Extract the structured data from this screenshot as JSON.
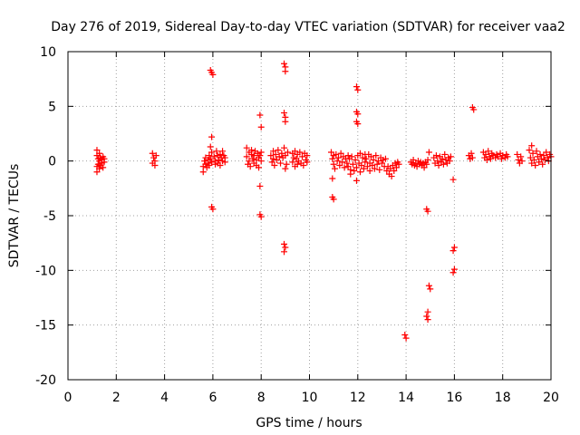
{
  "chart_data": {
    "type": "scatter",
    "title": "Day 276 of 2019, Sidereal Day-to-day VTEC variation (SDTVAR) for receiver vaa2",
    "xlabel": "GPS time / hours",
    "ylabel": "SDTVAR / TECUs",
    "xlim": [
      0,
      20
    ],
    "ylim": [
      -20,
      10
    ],
    "x_ticks": [
      0,
      2,
      4,
      6,
      8,
      10,
      12,
      14,
      16,
      18,
      20
    ],
    "y_ticks": [
      -20,
      -15,
      -10,
      -5,
      0,
      5,
      10
    ],
    "x_tick_labels": [
      "0",
      "2",
      "4",
      "6",
      "8",
      "10",
      "12",
      "14",
      "16",
      "18",
      "20"
    ],
    "y_tick_labels": [
      "-20",
      "-15",
      "-10",
      "-5",
      "0",
      "5",
      "10"
    ],
    "grid": true,
    "marker": "plus",
    "color": "#ff0000",
    "series": [
      {
        "name": "vaa2",
        "points": [
          [
            1.2,
            1.0
          ],
          [
            1.2,
            0.5
          ],
          [
            1.2,
            -0.5
          ],
          [
            1.2,
            -1.0
          ],
          [
            1.25,
            0.2
          ],
          [
            1.25,
            -0.3
          ],
          [
            1.3,
            0.0
          ],
          [
            1.3,
            0.7
          ],
          [
            1.3,
            -0.7
          ],
          [
            1.35,
            0.3
          ],
          [
            1.35,
            -0.4
          ],
          [
            1.4,
            0.1
          ],
          [
            1.4,
            -0.2
          ],
          [
            1.45,
            0.4
          ],
          [
            1.45,
            -0.6
          ],
          [
            1.5,
            0.2
          ],
          [
            1.5,
            -0.1
          ],
          [
            3.5,
            0.7
          ],
          [
            3.5,
            -0.2
          ],
          [
            3.55,
            0.3
          ],
          [
            3.6,
            0.0
          ],
          [
            3.6,
            -0.4
          ],
          [
            3.65,
            0.5
          ],
          [
            5.6,
            -0.5
          ],
          [
            5.6,
            -1.0
          ],
          [
            5.65,
            0.0
          ],
          [
            5.7,
            -0.3
          ],
          [
            5.7,
            0.3
          ],
          [
            5.75,
            -0.6
          ],
          [
            5.8,
            0.1
          ],
          [
            5.8,
            -0.2
          ],
          [
            5.85,
            0.5
          ],
          [
            5.85,
            -0.4
          ],
          [
            5.9,
            0.2
          ],
          [
            5.9,
            1.3
          ],
          [
            5.95,
            0.8
          ],
          [
            5.95,
            -0.1
          ],
          [
            5.9,
            8.3
          ],
          [
            5.95,
            8.1
          ],
          [
            6.0,
            7.9
          ],
          [
            5.95,
            2.2
          ],
          [
            5.95,
            -4.2
          ],
          [
            6.0,
            -4.4
          ],
          [
            6.05,
            0.4
          ],
          [
            6.1,
            0.0
          ],
          [
            6.1,
            -0.3
          ],
          [
            6.15,
            0.9
          ],
          [
            6.2,
            0.5
          ],
          [
            6.2,
            -0.2
          ],
          [
            6.25,
            0.1
          ],
          [
            6.3,
            0.6
          ],
          [
            6.3,
            -0.4
          ],
          [
            6.35,
            0.3
          ],
          [
            6.4,
            0.0
          ],
          [
            6.4,
            0.9
          ],
          [
            6.45,
            0.5
          ],
          [
            6.5,
            -0.1
          ],
          [
            6.5,
            0.3
          ],
          [
            7.4,
            1.2
          ],
          [
            7.4,
            0.4
          ],
          [
            7.45,
            -0.3
          ],
          [
            7.5,
            0.8
          ],
          [
            7.5,
            0.0
          ],
          [
            7.55,
            -0.5
          ],
          [
            7.6,
            0.6
          ],
          [
            7.6,
            1.0
          ],
          [
            7.65,
            0.2
          ],
          [
            7.7,
            -0.2
          ],
          [
            7.7,
            0.5
          ],
          [
            7.75,
            0.9
          ],
          [
            7.8,
            0.1
          ],
          [
            7.8,
            -0.4
          ],
          [
            7.85,
            0.7
          ],
          [
            7.9,
            0.3
          ],
          [
            7.9,
            -0.6
          ],
          [
            7.95,
            0.5
          ],
          [
            8.0,
            0.0
          ],
          [
            8.0,
            0.8
          ],
          [
            7.95,
            4.2
          ],
          [
            8.0,
            3.1
          ],
          [
            7.95,
            -2.3
          ],
          [
            7.95,
            -4.9
          ],
          [
            8.0,
            -5.1
          ],
          [
            8.4,
            0.5
          ],
          [
            8.45,
            -0.1
          ],
          [
            8.5,
            0.9
          ],
          [
            8.5,
            0.2
          ],
          [
            8.55,
            -0.4
          ],
          [
            8.6,
            0.6
          ],
          [
            8.65,
            0.1
          ],
          [
            8.7,
            1.0
          ],
          [
            8.75,
            0.4
          ],
          [
            8.8,
            -0.2
          ],
          [
            8.85,
            0.7
          ],
          [
            8.9,
            0.3
          ],
          [
            8.95,
            1.2
          ],
          [
            9.0,
            0.5
          ],
          [
            9.05,
            -0.3
          ],
          [
            9.1,
            0.8
          ],
          [
            8.95,
            8.9
          ],
          [
            9.0,
            8.6
          ],
          [
            9.0,
            8.2
          ],
          [
            8.95,
            4.4
          ],
          [
            9.0,
            4.0
          ],
          [
            9.0,
            3.6
          ],
          [
            9.0,
            -0.7
          ],
          [
            8.95,
            -7.6
          ],
          [
            9.0,
            -7.9
          ],
          [
            8.95,
            -8.3
          ],
          [
            9.3,
            0.7
          ],
          [
            9.3,
            -0.1
          ],
          [
            9.35,
            0.3
          ],
          [
            9.4,
            -0.5
          ],
          [
            9.4,
            0.9
          ],
          [
            9.45,
            0.2
          ],
          [
            9.5,
            -0.3
          ],
          [
            9.5,
            0.6
          ],
          [
            9.55,
            0.0
          ],
          [
            9.6,
            0.8
          ],
          [
            9.65,
            -0.2
          ],
          [
            9.7,
            0.4
          ],
          [
            9.75,
            -0.4
          ],
          [
            9.8,
            0.7
          ],
          [
            9.85,
            0.1
          ],
          [
            9.9,
            -0.1
          ],
          [
            9.9,
            0.5
          ],
          [
            10.9,
            0.8
          ],
          [
            10.95,
            0.2
          ],
          [
            11.0,
            -0.3
          ],
          [
            11.0,
            0.5
          ],
          [
            11.05,
            -0.7
          ],
          [
            11.1,
            0.6
          ],
          [
            11.15,
            0.0
          ],
          [
            11.2,
            0.3
          ],
          [
            11.25,
            -0.4
          ],
          [
            11.3,
            0.7
          ],
          [
            11.35,
            -0.1
          ],
          [
            11.4,
            0.4
          ],
          [
            11.45,
            -0.6
          ],
          [
            11.5,
            0.2
          ],
          [
            11.55,
            -0.2
          ],
          [
            11.6,
            0.5
          ],
          [
            10.95,
            -1.6
          ],
          [
            10.95,
            -3.3
          ],
          [
            11.0,
            -3.5
          ],
          [
            11.6,
            -0.5
          ],
          [
            11.65,
            0.2
          ],
          [
            11.7,
            -0.8
          ],
          [
            11.7,
            -1.2
          ],
          [
            11.75,
            0.4
          ],
          [
            11.8,
            -0.3
          ],
          [
            11.85,
            -0.9
          ],
          [
            11.9,
            0.1
          ],
          [
            11.95,
            -0.6
          ],
          [
            12.0,
            0.5
          ],
          [
            12.05,
            -0.2
          ],
          [
            12.1,
            -1.0
          ],
          [
            12.1,
            0.7
          ],
          [
            12.15,
            -0.4
          ],
          [
            12.2,
            0.3
          ],
          [
            12.25,
            -0.7
          ],
          [
            12.3,
            -0.1
          ],
          [
            12.3,
            0.6
          ],
          [
            11.95,
            6.8
          ],
          [
            12.0,
            6.5
          ],
          [
            11.95,
            4.5
          ],
          [
            12.0,
            4.3
          ],
          [
            11.95,
            3.6
          ],
          [
            12.0,
            3.4
          ],
          [
            11.95,
            -1.8
          ],
          [
            12.35,
            0.2
          ],
          [
            12.4,
            -0.5
          ],
          [
            12.45,
            0.6
          ],
          [
            12.5,
            -0.2
          ],
          [
            12.5,
            -0.9
          ],
          [
            12.55,
            0.4
          ],
          [
            12.6,
            -0.4
          ],
          [
            12.65,
            0.1
          ],
          [
            12.7,
            -0.7
          ],
          [
            12.75,
            0.5
          ],
          [
            12.8,
            -0.3
          ],
          [
            12.85,
            0.0
          ],
          [
            12.9,
            -0.8
          ],
          [
            12.95,
            0.3
          ],
          [
            13.0,
            -0.2
          ],
          [
            13.05,
            0.1
          ],
          [
            13.1,
            -0.5
          ],
          [
            13.15,
            0.2
          ],
          [
            13.2,
            -0.9
          ],
          [
            13.25,
            -0.5
          ],
          [
            13.3,
            -1.2
          ],
          [
            13.35,
            -0.7
          ],
          [
            13.4,
            -1.4
          ],
          [
            13.45,
            -0.4
          ],
          [
            13.5,
            -0.9
          ],
          [
            13.55,
            -0.2
          ],
          [
            13.6,
            -0.6
          ],
          [
            13.65,
            -0.1
          ],
          [
            13.7,
            -0.3
          ],
          [
            13.95,
            -15.9
          ],
          [
            14.0,
            -16.2
          ],
          [
            14.2,
            -0.1
          ],
          [
            14.25,
            -0.3
          ],
          [
            14.3,
            0.1
          ],
          [
            14.35,
            -0.4
          ],
          [
            14.4,
            -0.2
          ],
          [
            14.45,
            -0.5
          ],
          [
            14.5,
            0.0
          ],
          [
            14.55,
            -0.3
          ],
          [
            14.6,
            -0.1
          ],
          [
            14.65,
            -0.4
          ],
          [
            14.7,
            -0.2
          ],
          [
            14.75,
            -0.6
          ],
          [
            14.8,
            -0.1
          ],
          [
            14.85,
            -0.3
          ],
          [
            14.9,
            0.1
          ],
          [
            14.85,
            -4.4
          ],
          [
            14.9,
            -4.6
          ],
          [
            14.9,
            -13.8
          ],
          [
            14.85,
            -14.2
          ],
          [
            14.9,
            -14.5
          ],
          [
            14.95,
            -11.4
          ],
          [
            15.0,
            -11.7
          ],
          [
            14.95,
            0.8
          ],
          [
            15.15,
            0.3
          ],
          [
            15.2,
            -0.2
          ],
          [
            15.25,
            0.5
          ],
          [
            15.3,
            0.0
          ],
          [
            15.35,
            -0.4
          ],
          [
            15.4,
            0.4
          ],
          [
            15.45,
            -0.1
          ],
          [
            15.5,
            0.2
          ],
          [
            15.55,
            -0.3
          ],
          [
            15.6,
            0.6
          ],
          [
            15.65,
            0.1
          ],
          [
            15.7,
            -0.2
          ],
          [
            15.75,
            0.3
          ],
          [
            15.8,
            0.0
          ],
          [
            15.85,
            0.4
          ],
          [
            15.95,
            -1.7
          ],
          [
            16.0,
            -7.9
          ],
          [
            15.95,
            -8.2
          ],
          [
            16.0,
            -9.9
          ],
          [
            15.95,
            -10.2
          ],
          [
            16.6,
            0.5
          ],
          [
            16.65,
            0.2
          ],
          [
            16.7,
            0.7
          ],
          [
            16.75,
            0.3
          ],
          [
            16.75,
            4.9
          ],
          [
            16.8,
            4.7
          ],
          [
            17.2,
            0.8
          ],
          [
            17.25,
            0.3
          ],
          [
            17.3,
            0.6
          ],
          [
            17.35,
            0.1
          ],
          [
            17.4,
            0.9
          ],
          [
            17.45,
            0.4
          ],
          [
            17.5,
            0.2
          ],
          [
            17.55,
            0.7
          ],
          [
            17.6,
            0.5
          ],
          [
            17.7,
            0.3
          ],
          [
            17.75,
            0.6
          ],
          [
            17.8,
            0.4
          ],
          [
            17.9,
            0.7
          ],
          [
            17.95,
            0.2
          ],
          [
            18.0,
            0.5
          ],
          [
            18.1,
            0.3
          ],
          [
            18.15,
            0.6
          ],
          [
            18.2,
            0.4
          ],
          [
            18.6,
            0.6
          ],
          [
            18.65,
            0.1
          ],
          [
            18.7,
            -0.2
          ],
          [
            18.75,
            0.4
          ],
          [
            18.8,
            0.0
          ],
          [
            19.1,
            1.0
          ],
          [
            19.15,
            0.3
          ],
          [
            19.2,
            1.4
          ],
          [
            19.2,
            -0.2
          ],
          [
            19.25,
            0.7
          ],
          [
            19.3,
            0.1
          ],
          [
            19.35,
            -0.4
          ],
          [
            19.4,
            0.9
          ],
          [
            19.45,
            0.4
          ],
          [
            19.5,
            -0.1
          ],
          [
            19.55,
            0.6
          ],
          [
            19.6,
            0.2
          ],
          [
            19.65,
            -0.3
          ],
          [
            19.7,
            0.5
          ],
          [
            19.75,
            0.1
          ],
          [
            19.8,
            0.8
          ],
          [
            19.85,
            0.3
          ],
          [
            19.9,
            0.0
          ],
          [
            19.95,
            0.6
          ],
          [
            20.0,
            0.4
          ]
        ]
      }
    ]
  }
}
